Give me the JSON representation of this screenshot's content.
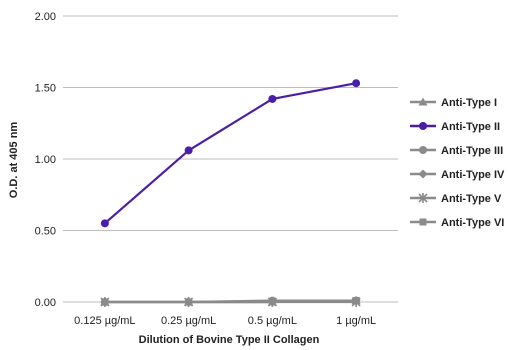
{
  "chart_data": {
    "type": "line",
    "title": "",
    "xlabel": "Dilution of Bovine Type II Collagen",
    "ylabel": "O.D. at 405 nm",
    "categories": [
      "0.125 µg/mL",
      "0.25 µg/mL",
      "0.5 µg/mL",
      "1 µg/mL"
    ],
    "ylim": [
      0,
      2
    ],
    "yticks": [
      "0.00",
      "0.50",
      "1.00",
      "1.50",
      "2.00"
    ],
    "ytick_values": [
      0,
      0.5,
      1,
      1.5,
      2
    ],
    "grid": "horizontal",
    "legend_position": "right",
    "series": [
      {
        "name": "Anti-Type I",
        "values": [
          0.0,
          0.0,
          0.0,
          0.01
        ],
        "color": "#8a8a8a",
        "marker": "triangle"
      },
      {
        "name": "Anti-Type II",
        "values": [
          0.55,
          1.06,
          1.42,
          1.53
        ],
        "color": "#4b1ea8",
        "marker": "circle"
      },
      {
        "name": "Anti-Type III",
        "values": [
          0.0,
          0.0,
          0.01,
          0.01
        ],
        "color": "#8a8a8a",
        "marker": "circle"
      },
      {
        "name": "Anti-Type IV",
        "values": [
          0.0,
          0.0,
          0.0,
          0.01
        ],
        "color": "#8a8a8a",
        "marker": "diamond"
      },
      {
        "name": "Anti-Type V",
        "values": [
          0.0,
          0.0,
          0.0,
          0.0
        ],
        "color": "#8a8a8a",
        "marker": "star"
      },
      {
        "name": "Anti-Type VI",
        "values": [
          0.0,
          0.0,
          0.0,
          0.01
        ],
        "color": "#8a8a8a",
        "marker": "square"
      }
    ]
  }
}
